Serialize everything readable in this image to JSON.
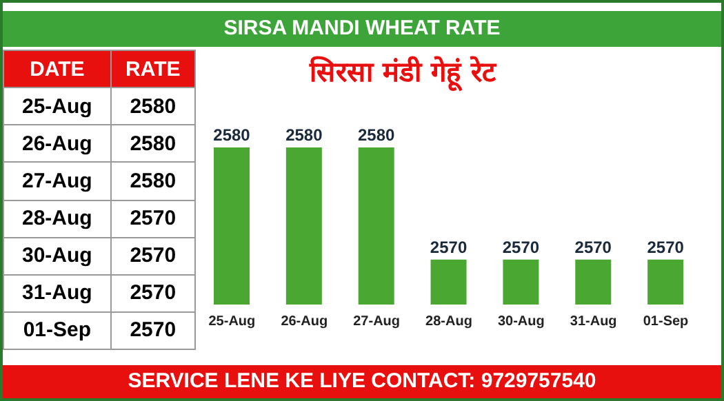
{
  "chart_data": {
    "type": "bar",
    "title": "SIRSA MANDI WHEAT RATE",
    "subtitle": "सिरसा मंडी गेहूं रेट",
    "categories": [
      "25-Aug",
      "26-Aug",
      "27-Aug",
      "28-Aug",
      "30-Aug",
      "31-Aug",
      "01-Sep"
    ],
    "values": [
      2580,
      2580,
      2580,
      2570,
      2570,
      2570,
      2570
    ],
    "color": "#4aa832",
    "value_labels": [
      "2580",
      "2580",
      "2580",
      "2570",
      "2570",
      "2570",
      "2570"
    ],
    "ylim": [
      2566,
      2580
    ],
    "tick_labels": "x",
    "grid": false,
    "legend": false,
    "annotations": [
      "DATE",
      "RATE",
      "SERVICE LENE KE LIYE CONTACT: 9729757540"
    ]
  }
}
